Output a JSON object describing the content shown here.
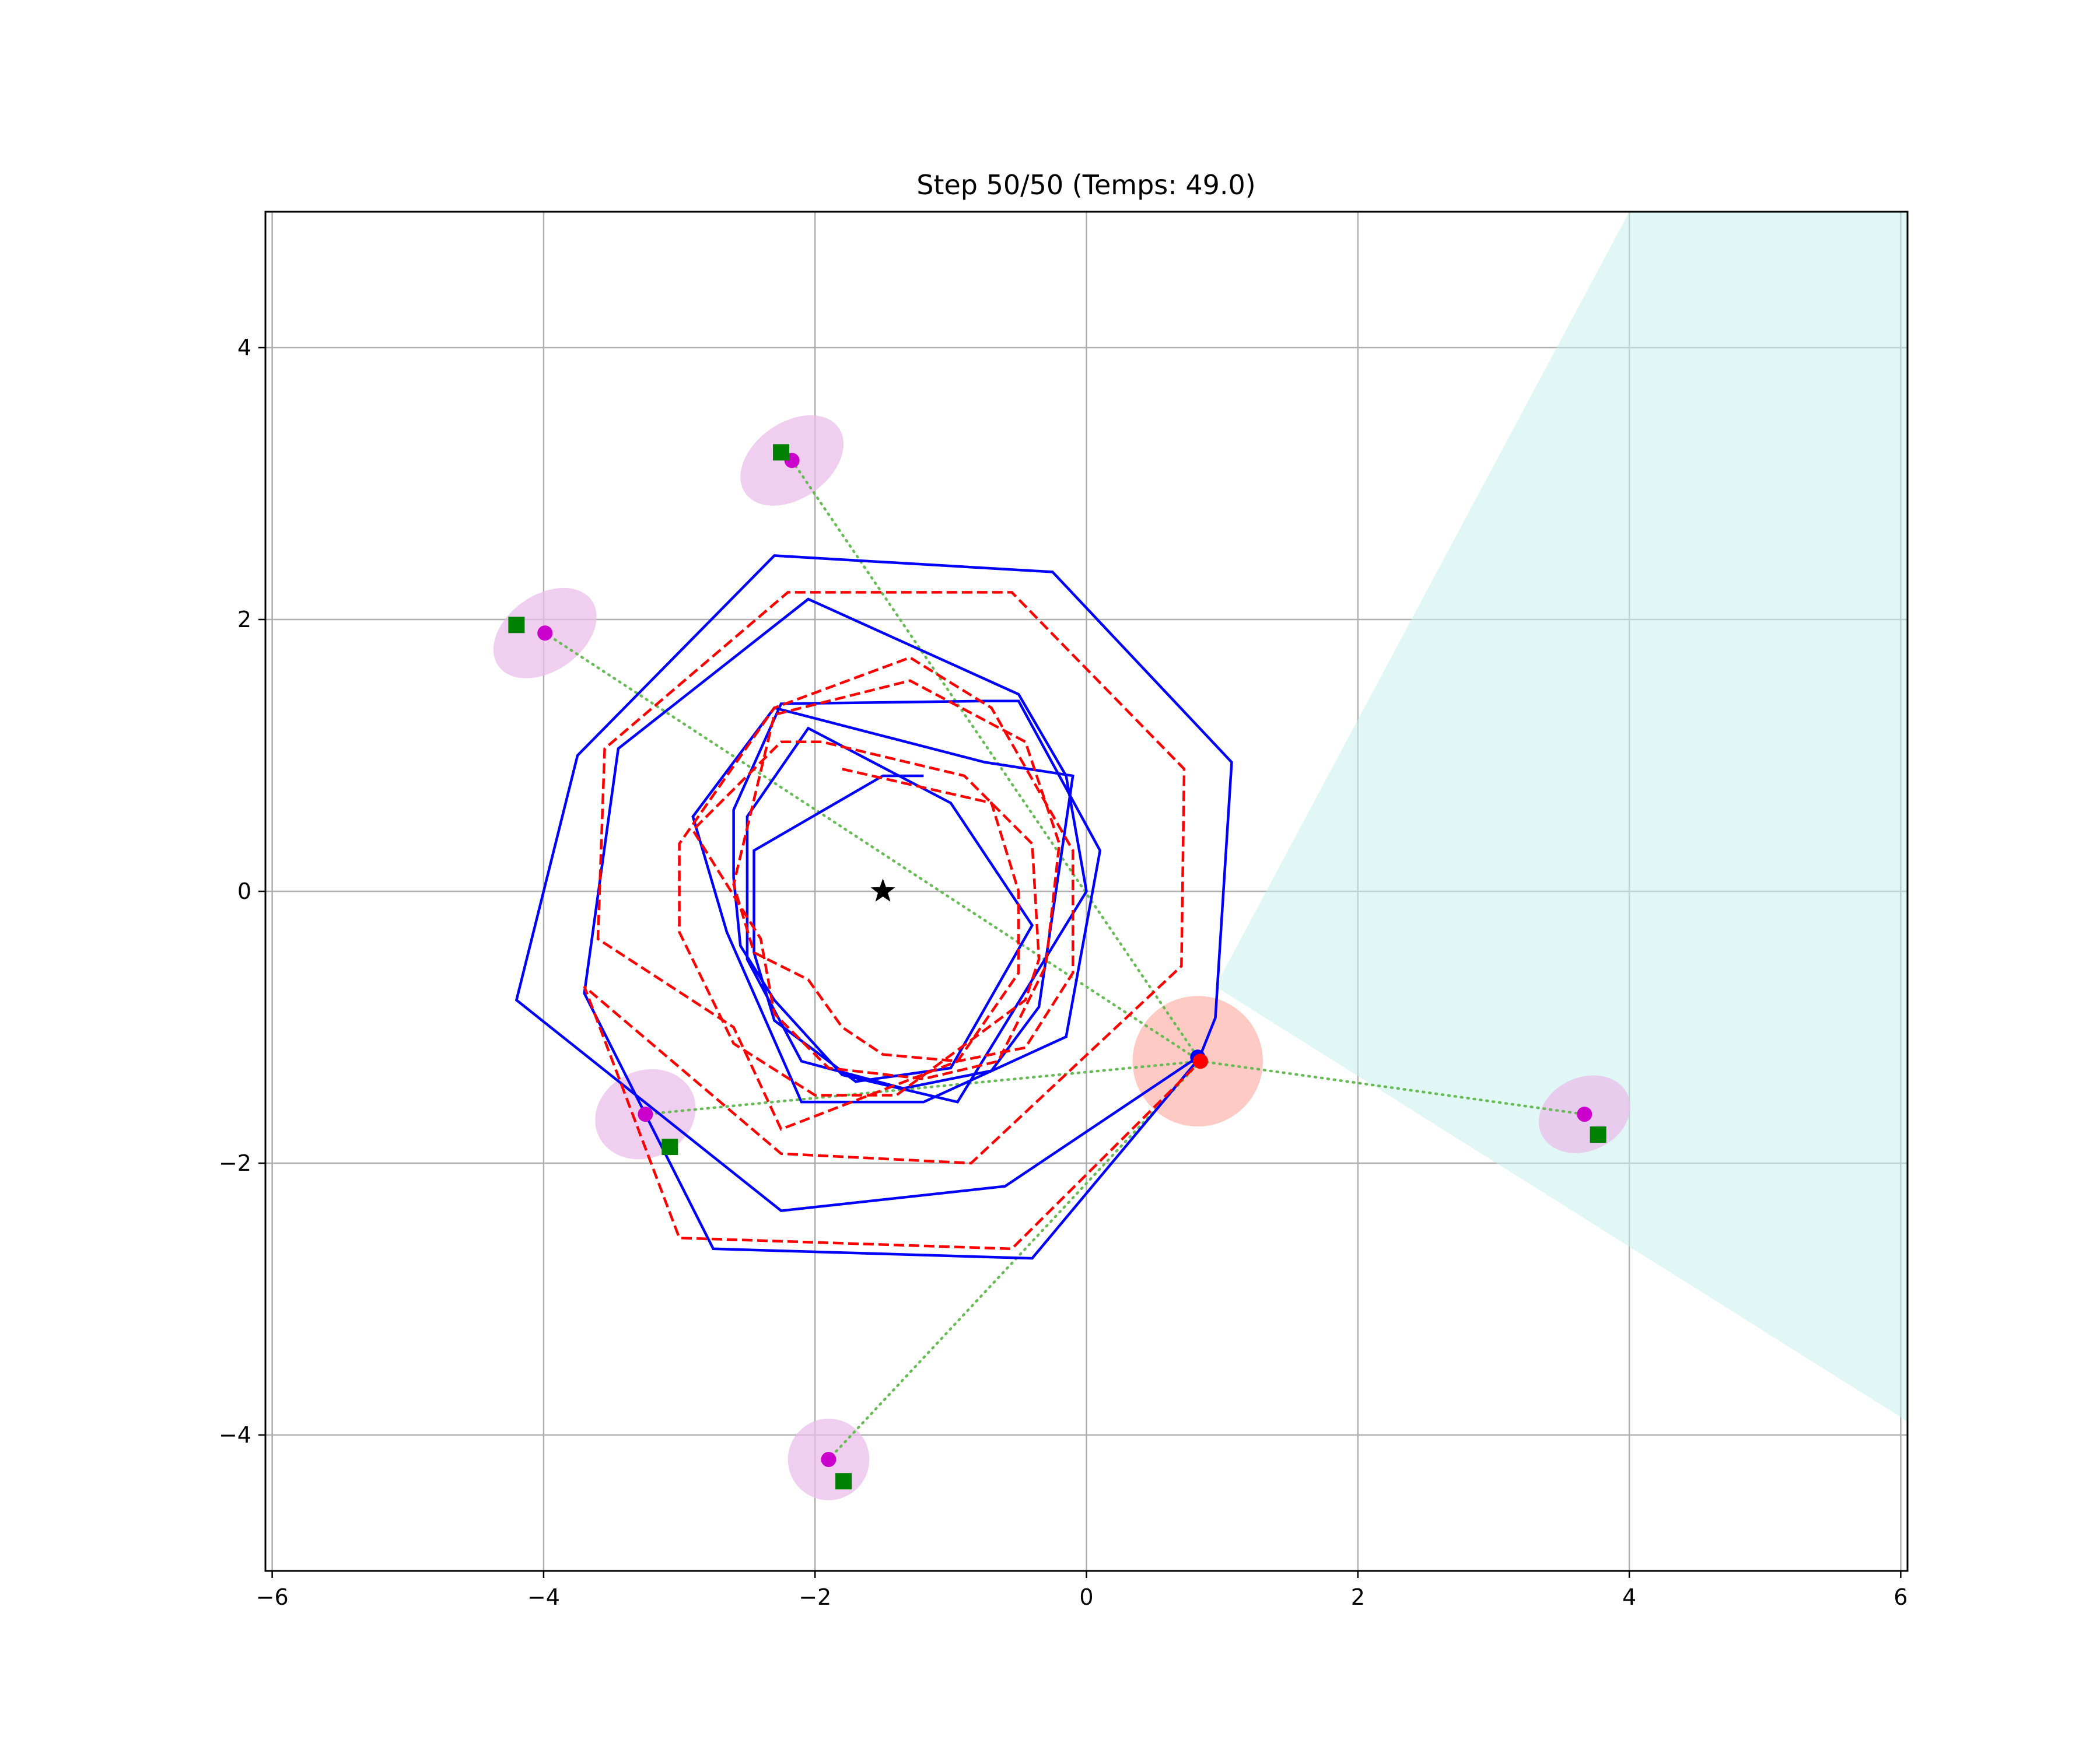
{
  "chart_data": {
    "type": "line",
    "title": "Step 50/50 (Temps: 49.0)",
    "xlabel": "",
    "ylabel": "",
    "xlim": [
      -6.05,
      6.05
    ],
    "ylim": [
      -5.0,
      5.0
    ],
    "grid": true,
    "xticks": [
      -6,
      -4,
      -2,
      0,
      2,
      4,
      6
    ],
    "yticks": [
      -4,
      -2,
      0,
      2,
      4
    ],
    "xtick_labels": [
      "−6",
      "−4",
      "−2",
      "0",
      "2",
      "4",
      "6"
    ],
    "ytick_labels": [
      "−4",
      "−2",
      "0",
      "2",
      "4"
    ],
    "colors": {
      "true_path": "#0000ff",
      "estimated_path": "#ff0000",
      "fov": "#c9f0ec",
      "landmark_estimate": "#cc00cc",
      "landmark_true": "#008000",
      "landmark_ellipse": "#e9bdea",
      "robot_ellipse": "#ffbcb5",
      "observation_line": "#66bb55",
      "target": "#000000",
      "grid": "#b0b0b0"
    },
    "target": {
      "x": -1.5,
      "y": 0.0
    },
    "field_of_view": [
      [
        0.95,
        -0.7
      ],
      [
        4.0,
        5.0
      ],
      [
        6.05,
        5.0
      ],
      [
        6.05,
        -3.9
      ]
    ],
    "robot_true": {
      "x": 0.82,
      "y": -1.22
    },
    "robot_estimate": {
      "x": 0.84,
      "y": -1.25
    },
    "robot_uncertainty": {
      "cx": 0.82,
      "cy": -1.25,
      "rx": 0.48,
      "ry": 0.48,
      "angle": 0
    },
    "landmarks": [
      {
        "estimate": [
          -2.17,
          3.17
        ],
        "true": [
          -2.25,
          3.23
        ],
        "ellipse": {
          "rx": 0.42,
          "ry": 0.28,
          "angle": -35
        }
      },
      {
        "estimate": [
          -3.99,
          1.9
        ],
        "true": [
          -4.2,
          1.96
        ],
        "ellipse": {
          "rx": 0.42,
          "ry": 0.28,
          "angle": -35
        }
      },
      {
        "estimate": [
          -3.25,
          -1.64
        ],
        "true": [
          -3.07,
          -1.88
        ],
        "ellipse": {
          "rx": 0.38,
          "ry": 0.32,
          "angle": -25
        }
      },
      {
        "estimate": [
          -1.9,
          -4.18
        ],
        "true": [
          -1.79,
          -4.34
        ],
        "ellipse": {
          "rx": 0.3,
          "ry": 0.3,
          "angle": 0
        }
      },
      {
        "estimate": [
          3.67,
          -1.64
        ],
        "true": [
          3.77,
          -1.79
        ],
        "ellipse": {
          "rx": 0.35,
          "ry": 0.27,
          "angle": -25
        }
      }
    ],
    "series": [
      {
        "name": "true_path",
        "style": "solid",
        "points": [
          [
            -1.2,
            0.85
          ],
          [
            -1.5,
            0.85
          ],
          [
            -2.45,
            0.3
          ],
          [
            -2.45,
            -0.45
          ],
          [
            -2.3,
            -0.95
          ],
          [
            -1.7,
            -1.4
          ],
          [
            -1.0,
            -1.3
          ],
          [
            -0.4,
            -0.25
          ],
          [
            -1.0,
            0.65
          ],
          [
            -2.05,
            1.2
          ],
          [
            -2.5,
            0.55
          ],
          [
            -2.5,
            -0.5
          ],
          [
            -2.1,
            -1.25
          ],
          [
            -1.35,
            -1.45
          ],
          [
            -0.7,
            -1.32
          ],
          [
            -0.35,
            -0.85
          ],
          [
            -0.1,
            0.85
          ],
          [
            -0.75,
            0.95
          ],
          [
            -2.3,
            1.35
          ],
          [
            -2.9,
            0.55
          ],
          [
            -2.65,
            -0.3
          ],
          [
            -2.1,
            -1.55
          ],
          [
            -1.2,
            -1.55
          ],
          [
            -0.15,
            -1.07
          ],
          [
            0.1,
            0.3
          ],
          [
            -0.5,
            1.4
          ],
          [
            -0.75,
            1.4
          ],
          [
            -2.25,
            1.38
          ],
          [
            -2.6,
            0.6
          ],
          [
            -2.6,
            0.1
          ],
          [
            -2.55,
            -0.4
          ],
          [
            -2.3,
            -0.8
          ],
          [
            -1.8,
            -1.35
          ],
          [
            -0.95,
            -1.55
          ],
          [
            0.0,
            0.0
          ],
          [
            -0.15,
            0.85
          ],
          [
            -0.5,
            1.45
          ],
          [
            -2.05,
            2.15
          ],
          [
            -3.45,
            1.05
          ],
          [
            -3.7,
            -0.75
          ],
          [
            -2.75,
            -2.63
          ],
          [
            -0.4,
            -2.7
          ],
          [
            0.83,
            -1.23
          ],
          [
            0.95,
            -0.93
          ],
          [
            1.07,
            0.95
          ],
          [
            -0.25,
            2.35
          ],
          [
            -2.3,
            2.47
          ],
          [
            -3.75,
            1.0
          ],
          [
            -4.2,
            -0.8
          ],
          [
            -2.25,
            -2.35
          ],
          [
            -0.6,
            -2.17
          ],
          [
            0.82,
            -1.22
          ]
        ]
      },
      {
        "name": "estimated_path",
        "style": "dashed",
        "points": [
          [
            -1.8,
            0.9
          ],
          [
            -0.7,
            0.65
          ],
          [
            -0.5,
            0.0
          ],
          [
            -0.5,
            -0.6
          ],
          [
            -0.95,
            -1.25
          ],
          [
            -1.5,
            -1.2
          ],
          [
            -1.8,
            -1.0
          ],
          [
            -2.05,
            -0.65
          ],
          [
            -2.45,
            -0.45
          ],
          [
            -2.6,
            0.05
          ],
          [
            -2.3,
            1.3
          ],
          [
            -1.3,
            1.55
          ],
          [
            -0.45,
            1.1
          ],
          [
            -0.2,
            0.35
          ],
          [
            -0.3,
            -0.55
          ],
          [
            -0.65,
            -1.25
          ],
          [
            -1.2,
            -1.38
          ],
          [
            -1.9,
            -1.3
          ],
          [
            -2.3,
            -0.9
          ],
          [
            -2.4,
            -0.35
          ],
          [
            -2.9,
            0.45
          ],
          [
            -2.25,
            1.1
          ],
          [
            -1.95,
            1.1
          ],
          [
            -0.9,
            0.85
          ],
          [
            -0.4,
            0.35
          ],
          [
            -0.35,
            -0.5
          ],
          [
            -0.45,
            -0.8
          ],
          [
            -1.4,
            -1.5
          ],
          [
            -2.0,
            -1.5
          ],
          [
            -2.6,
            -1.12
          ],
          [
            -3.0,
            -0.3
          ],
          [
            -3.0,
            0.35
          ],
          [
            -2.3,
            1.35
          ],
          [
            -1.3,
            1.72
          ],
          [
            -0.7,
            1.35
          ],
          [
            -0.1,
            0.3
          ],
          [
            -0.1,
            -0.6
          ],
          [
            -0.45,
            -1.15
          ],
          [
            -0.95,
            -1.25
          ],
          [
            -2.25,
            -1.75
          ],
          [
            -2.6,
            -1.0
          ],
          [
            -3.6,
            -0.35
          ],
          [
            -3.55,
            1.05
          ],
          [
            -2.2,
            2.2
          ],
          [
            -0.55,
            2.2
          ],
          [
            0.72,
            0.9
          ],
          [
            0.7,
            -0.55
          ],
          [
            -0.85,
            -2.0
          ],
          [
            -2.25,
            -1.93
          ],
          [
            -3.7,
            -0.7
          ],
          [
            -3.0,
            -2.55
          ],
          [
            -0.55,
            -2.63
          ],
          [
            0.84,
            -1.25
          ]
        ]
      }
    ]
  }
}
